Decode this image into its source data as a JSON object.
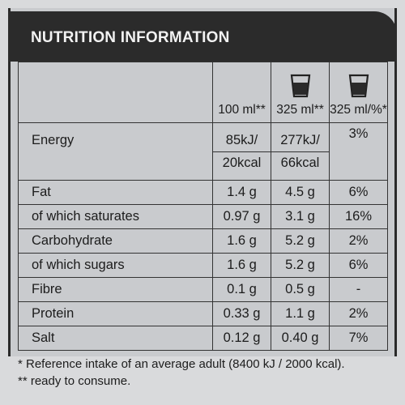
{
  "header": {
    "title": "NUTRITION INFORMATION"
  },
  "columns": {
    "per100": "100 ml**",
    "per325": "325 ml**",
    "ri": "325 ml/%*"
  },
  "icons": {
    "serving_glass": "glass-icon",
    "ri_glass": "glass-icon"
  },
  "energy": {
    "label": "Energy",
    "per100_kj": "85kJ/",
    "per100_kcal": "20kcal",
    "per325_kj": "277kJ/",
    "per325_kcal": "66kcal",
    "ri": "3%"
  },
  "rows": [
    {
      "label": "Fat",
      "per100": "1.4 g",
      "per325": "4.5 g",
      "ri": "6%"
    },
    {
      "label": "of which saturates",
      "per100": "0.97 g",
      "per325": "3.1 g",
      "ri": "16%"
    },
    {
      "label": "Carbohydrate",
      "per100": "1.6 g",
      "per325": "5.2 g",
      "ri": "2%"
    },
    {
      "label": "of which sugars",
      "per100": "1.6 g",
      "per325": "5.2 g",
      "ri": "6%"
    },
    {
      "label": "Fibre",
      "per100": "0.1 g",
      "per325": "0.5 g",
      "ri": "-"
    },
    {
      "label": "Protein",
      "per100": "0.33 g",
      "per325": "1.1 g",
      "ri": "2%"
    },
    {
      "label": "Salt",
      "per100": "0.12 g",
      "per325": "0.40 g",
      "ri": "7%"
    }
  ],
  "footnotes": {
    "reference": "* Reference intake of an average adult (8400 kJ / 2000 kcal).",
    "ready": "** ready to consume."
  }
}
